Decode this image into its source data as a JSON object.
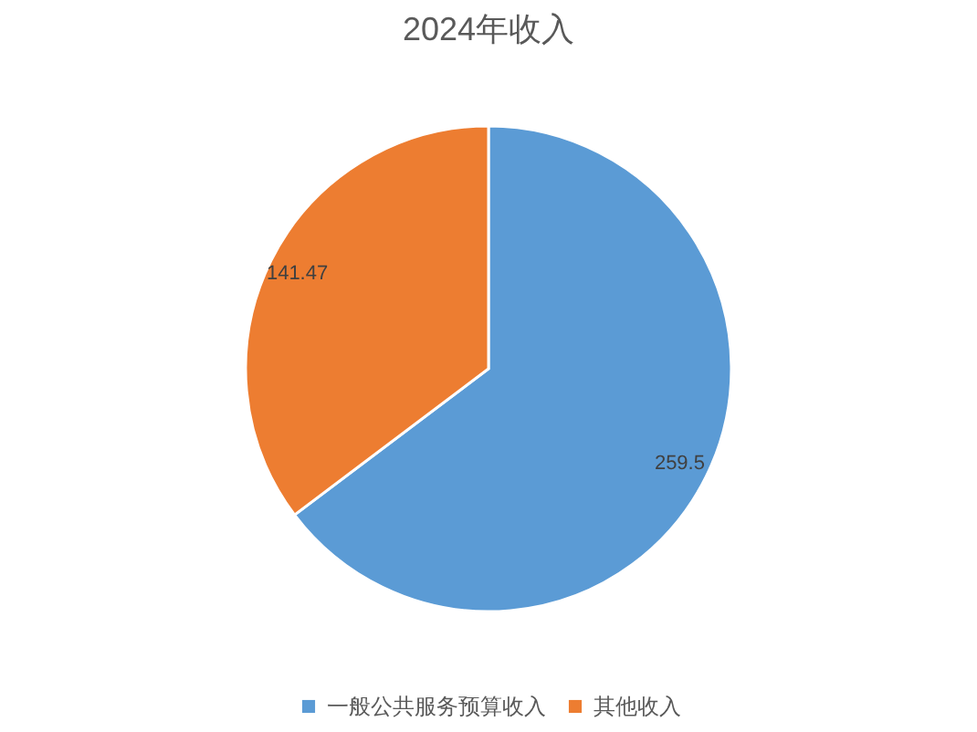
{
  "chart_data": {
    "type": "pie",
    "title": "2024年收入",
    "categories": [
      "一般公共服务预算收入",
      "其他收入"
    ],
    "values": [
      259.5,
      141.47
    ],
    "colors": [
      "#5b9bd5",
      "#ed7d31"
    ],
    "data_labels": true,
    "legend": "bottom"
  }
}
